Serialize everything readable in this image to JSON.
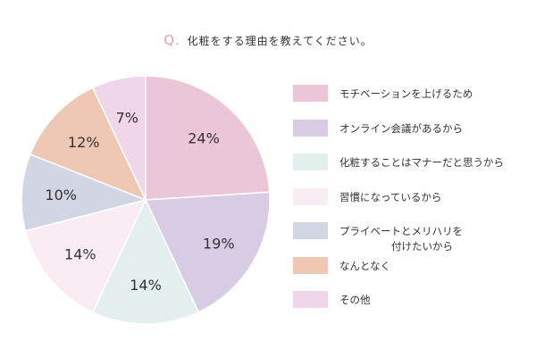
{
  "title": {
    "prefix": "Q.",
    "text": "化粧をする理由を教えてください。"
  },
  "chart_data": {
    "type": "pie",
    "start": "top, clockwise",
    "slices": [
      {
        "label": "モチベーションを上げるため",
        "value": 24,
        "color": "#ebc6d8"
      },
      {
        "label": "オンライン会議があるから",
        "value": 19,
        "color": "#d8cbe4"
      },
      {
        "label": "化粧することはマナーだと思うから",
        "value": 14,
        "color": "#e3eeef"
      },
      {
        "label": "習慣になっているから",
        "value": 14,
        "color": "#f9ecf2"
      },
      {
        "label": "プライベートとメリハリを付けたいから",
        "label_lines": [
          "プライベートとメリハリを",
          "付けたいから"
        ],
        "value": 10,
        "color": "#d1d5e4"
      },
      {
        "label": "なんとなく",
        "value": 12,
        "color": "#efc8b4"
      },
      {
        "label": "その他",
        "value": 7,
        "color": "#efd6e8"
      }
    ],
    "value_suffix": "%"
  }
}
